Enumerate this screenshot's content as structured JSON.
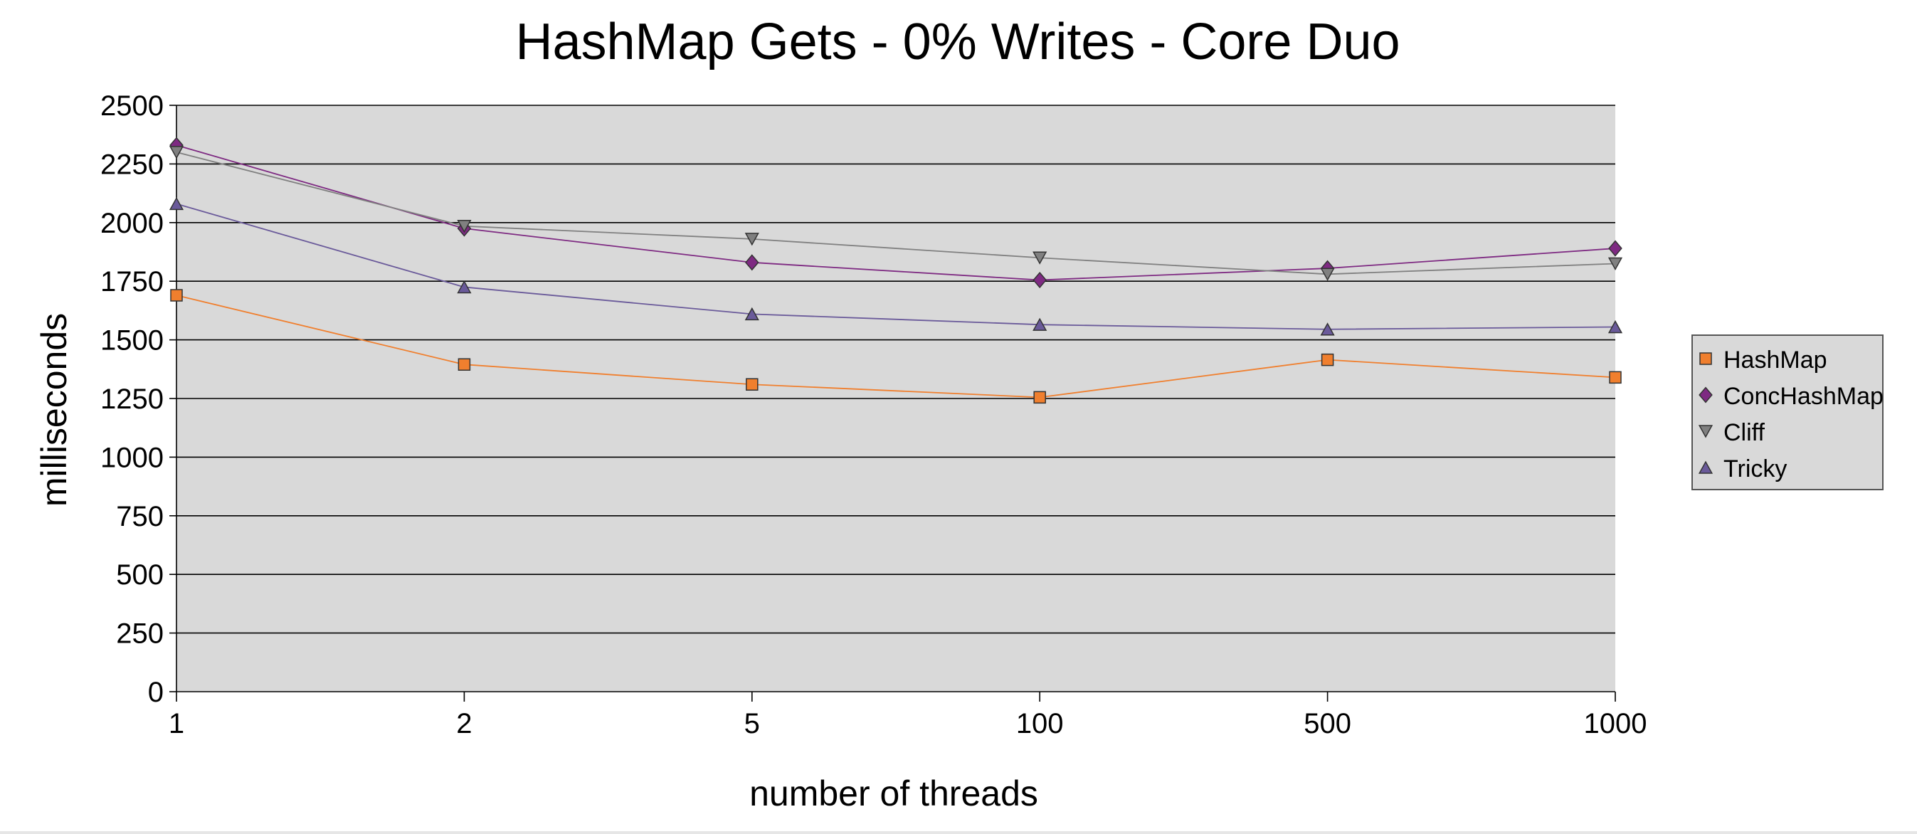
{
  "chart_data": {
    "type": "line",
    "title": "HashMap Gets - 0% Writes - Core Duo",
    "xlabel": "number of threads",
    "ylabel": "milliseconds",
    "categories": [
      "1",
      "2",
      "5",
      "100",
      "500",
      "1000"
    ],
    "ylim": [
      0,
      2500
    ],
    "yticks": [
      "0",
      "250",
      "500",
      "750",
      "1000",
      "1250",
      "1500",
      "1750",
      "2000",
      "2250",
      "2500"
    ],
    "grid": true,
    "legend_position": "right",
    "plot_background": "#d9d9d9",
    "series": [
      {
        "name": "HashMap",
        "marker": "square",
        "color": "#f07f2e",
        "values": [
          1690,
          1395,
          1310,
          1255,
          1415,
          1340
        ]
      },
      {
        "name": "ConcHashMap",
        "marker": "diamond",
        "color": "#7e2a82",
        "values": [
          2330,
          1975,
          1830,
          1755,
          1805,
          1890
        ]
      },
      {
        "name": "Cliff",
        "marker": "triangle-down",
        "color": "#808080",
        "values": [
          2300,
          1985,
          1930,
          1850,
          1780,
          1825
        ]
      },
      {
        "name": "Tricky",
        "marker": "triangle-up",
        "color": "#6a5a9a",
        "values": [
          2080,
          1725,
          1610,
          1565,
          1545,
          1555
        ]
      }
    ]
  }
}
